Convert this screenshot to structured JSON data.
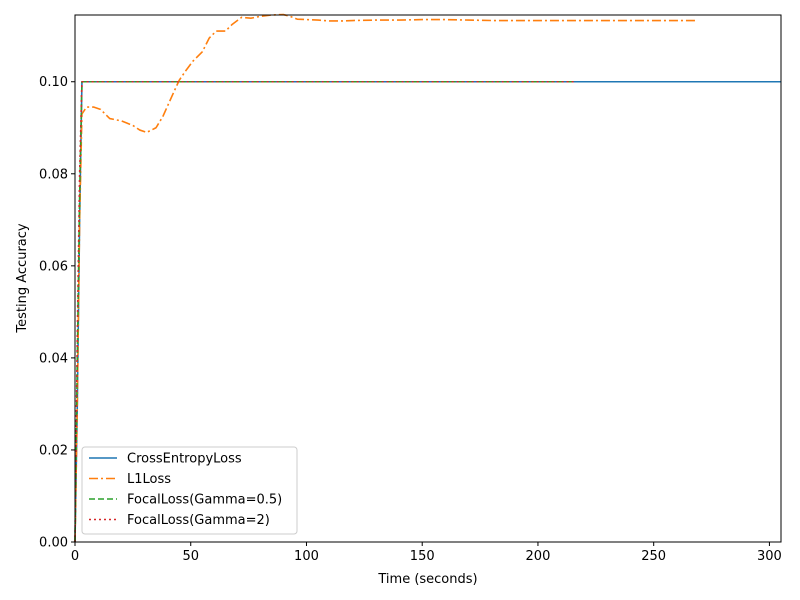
{
  "chart_data": {
    "type": "line",
    "title": "",
    "xlabel": "Time (seconds)",
    "ylabel": "Testing Accuracy",
    "xlim": [
      0,
      305
    ],
    "ylim": [
      0,
      0.1145
    ],
    "xticks": [
      0,
      50,
      100,
      150,
      200,
      250,
      300
    ],
    "yticks": [
      0.0,
      0.02,
      0.04,
      0.06,
      0.08,
      0.1
    ],
    "xtick_labels": [
      "0",
      "50",
      "100",
      "150",
      "200",
      "250",
      "300"
    ],
    "ytick_labels": [
      "0.00",
      "0.02",
      "0.04",
      "0.06",
      "0.08",
      "0.10"
    ],
    "grid": false,
    "legend_position": "lower-left",
    "series": [
      {
        "name": "CrossEntropyLoss",
        "color": "#1f77b4",
        "dash": "solid",
        "x": [
          0,
          1,
          2,
          3,
          305
        ],
        "y": [
          0.0,
          0.03,
          0.07,
          0.1,
          0.1
        ]
      },
      {
        "name": "L1Loss",
        "color": "#ff7f0e",
        "dash": "dashdot",
        "x": [
          0,
          1,
          2,
          3,
          5,
          8,
          11,
          15,
          20,
          25,
          28,
          31,
          35,
          38,
          42,
          45,
          48,
          51,
          55,
          58,
          61,
          65,
          68,
          72,
          76,
          80,
          85,
          90,
          93,
          96,
          100,
          105,
          110,
          115,
          120,
          130,
          140,
          150,
          160,
          170,
          180,
          190,
          200,
          220,
          240,
          260,
          268
        ],
        "y": [
          0.0,
          0.03,
          0.07,
          0.093,
          0.0945,
          0.0945,
          0.094,
          0.092,
          0.0915,
          0.0905,
          0.0895,
          0.089,
          0.09,
          0.0925,
          0.097,
          0.1003,
          0.1025,
          0.1045,
          0.1065,
          0.1095,
          0.111,
          0.111,
          0.1125,
          0.114,
          0.1138,
          0.1142,
          0.1145,
          0.1146,
          0.1142,
          0.1136,
          0.1135,
          0.1134,
          0.1132,
          0.1132,
          0.1133,
          0.1134,
          0.1134,
          0.1135,
          0.1135,
          0.1134,
          0.1133,
          0.1133,
          0.1133,
          0.1133,
          0.1133,
          0.1133,
          0.1133
        ]
      },
      {
        "name": "FocalLoss(Gamma=0.5)",
        "color": "#2ca02c",
        "dash": "dashed",
        "x": [
          0,
          1,
          2,
          3,
          216
        ],
        "y": [
          0.0,
          0.04,
          0.075,
          0.1,
          0.1
        ]
      },
      {
        "name": "FocalLoss(Gamma=2)",
        "color": "#d62728",
        "dash": "dotted",
        "x": [
          0,
          1,
          2,
          3,
          216
        ],
        "y": [
          0.0,
          0.045,
          0.08,
          0.1,
          0.1
        ]
      }
    ]
  }
}
